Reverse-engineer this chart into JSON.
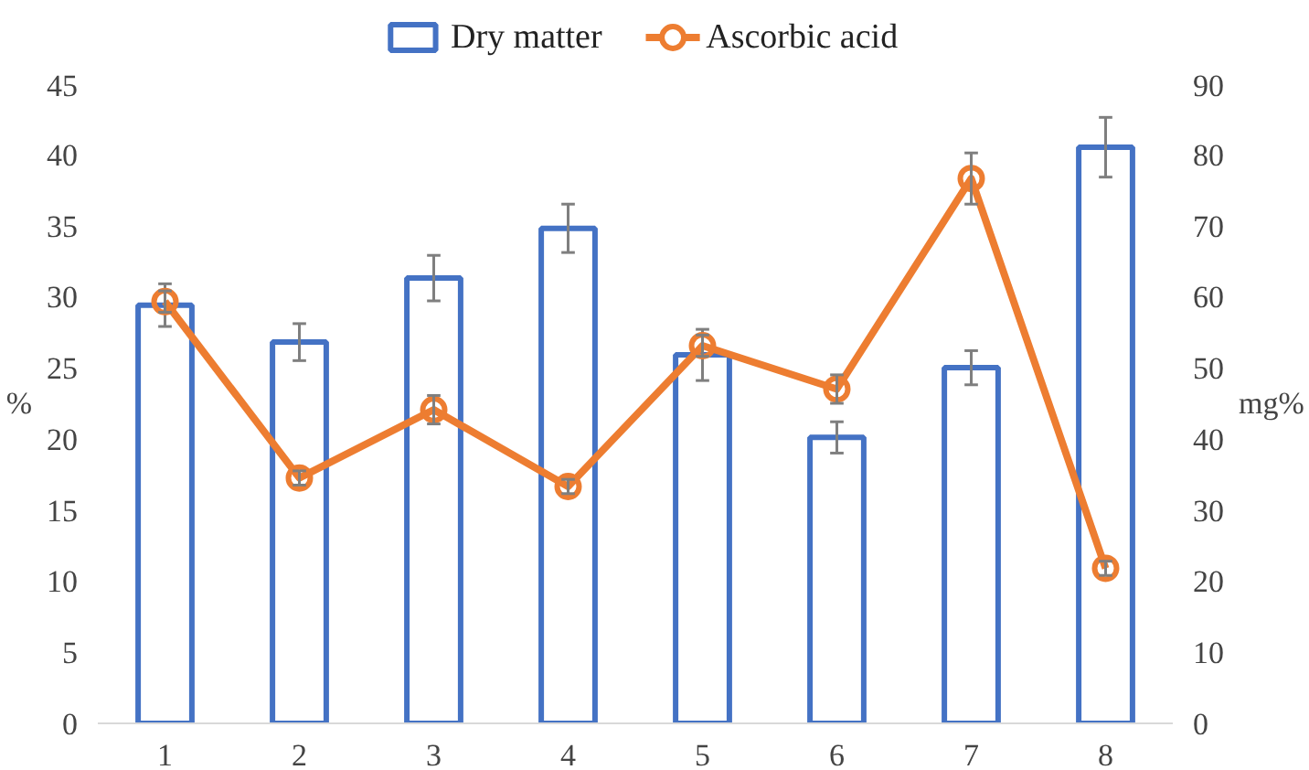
{
  "chart_data": {
    "type": "bar",
    "categories": [
      "1",
      "2",
      "3",
      "4",
      "5",
      "6",
      "7",
      "8"
    ],
    "ylabel": "%",
    "y2label": "mg%",
    "ylim": [
      0,
      45
    ],
    "yticks": [
      0,
      5,
      10,
      15,
      20,
      25,
      30,
      35,
      40,
      45
    ],
    "y2lim": [
      0,
      90
    ],
    "y2ticks": [
      0,
      10,
      20,
      30,
      40,
      50,
      60,
      70,
      80,
      90
    ],
    "grid": false,
    "legend": "top",
    "series": [
      {
        "name": "Dry matter",
        "color": "#4472c4",
        "values": [
          29.4,
          26.8,
          31.3,
          34.8,
          25.9,
          20.1,
          25.0,
          40.5
        ],
        "errors": [
          1.5,
          1.3,
          1.6,
          1.7,
          1.8,
          1.1,
          1.2,
          2.1
        ]
      },
      {
        "name": "Ascorbic acid",
        "type": "line",
        "axis": "y2",
        "color": "#ed7d31",
        "marker": "circle",
        "values": [
          59.3,
          34.5,
          44.1,
          33.3,
          53.1,
          47.0,
          76.6,
          21.8
        ],
        "errors": [
          1.5,
          1,
          2,
          1,
          1.5,
          2,
          3.6,
          1
        ]
      }
    ]
  }
}
